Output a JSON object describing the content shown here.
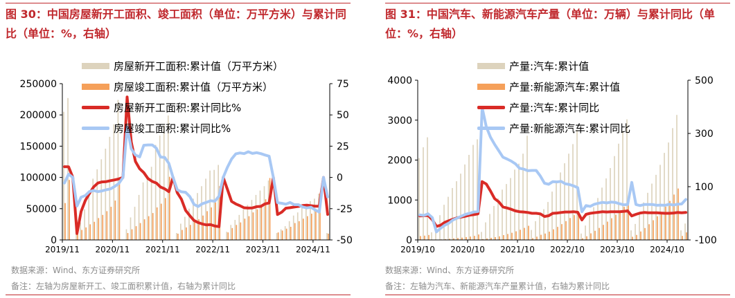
{
  "panels": [
    {
      "title": "图 30：中国房屋新开工面积、竣工面积（单位：万平方米）与累计同比（单位：%，右轴）",
      "source": "数据来源：Wind、东方证券研究所",
      "remark": "备注：左轴为房屋新开工、竣工面积累计值，右轴为累计同比",
      "legend": [
        {
          "label": "房屋新开工面积:累计值（万平方米）",
          "kind": "bar",
          "color": "#ddd3bd"
        },
        {
          "label": "房屋竣工面积:累计值（万平方米）",
          "kind": "bar",
          "color": "#f5a05a"
        },
        {
          "label": "房屋新开工面积:累计同比%",
          "kind": "line",
          "color": "#d92b26"
        },
        {
          "label": "房屋竣工面积:累计同比%",
          "kind": "line",
          "color": "#a8c8f4"
        }
      ]
    },
    {
      "title": "图 31：中国汽车、新能源汽车产量（单位：万辆）与累计同比（单位：%，右轴）",
      "source": "数据来源：Wind、东方证券研究所",
      "remark": "备注：左轴为汽车、新能源汽车产量累计值，右轴为累计同比",
      "legend": [
        {
          "label": "产量:汽车:累计值",
          "kind": "bar",
          "color": "#ddd3bd"
        },
        {
          "label": "产量:新能源汽车:累计值",
          "kind": "bar",
          "color": "#f5a05a"
        },
        {
          "label": "产量:汽车:累计同比",
          "kind": "line",
          "color": "#d92b26"
        },
        {
          "label": "产量:新能源汽车:累计同比",
          "kind": "line",
          "color": "#a8c8f4"
        }
      ]
    }
  ],
  "chart_data": [
    {
      "type": "bar",
      "title": "图 30：中国房屋新开工面积、竣工面积（单位：万平方米）与累计同比（单位：%，右轴）",
      "x": [
        "2019/11",
        "2019/12",
        "2020/01",
        "2020/02",
        "2020/03",
        "2020/04",
        "2020/05",
        "2020/06",
        "2020/07",
        "2020/08",
        "2020/09",
        "2020/10",
        "2020/11",
        "2020/12",
        "2021/01",
        "2021/02",
        "2021/03",
        "2021/04",
        "2021/05",
        "2021/06",
        "2021/07",
        "2021/08",
        "2021/09",
        "2021/10",
        "2021/11",
        "2021/12",
        "2022/01",
        "2022/02",
        "2022/03",
        "2022/04",
        "2022/05",
        "2022/06",
        "2022/07",
        "2022/08",
        "2022/09",
        "2022/10",
        "2022/11",
        "2022/12",
        "2023/01",
        "2023/02",
        "2023/03",
        "2023/04",
        "2023/05",
        "2023/06",
        "2023/07",
        "2023/08",
        "2023/09",
        "2023/10",
        "2023/11",
        "2023/12",
        "2024/01",
        "2024/02",
        "2024/03",
        "2024/04",
        "2024/05",
        "2024/06",
        "2024/07",
        "2024/08",
        "2024/09",
        "2024/10",
        "2024/11",
        "2024/12",
        "2025/01",
        "2025/02"
      ],
      "x_tick_labels": [
        "2019/11",
        "2020/11",
        "2021/11",
        "2022/11",
        "2023/11",
        "2024/11"
      ],
      "y_left_ticks": [
        "0",
        "50000",
        "100000",
        "150000",
        "200000",
        "250000"
      ],
      "y_right_ticks": [
        "-50",
        "-25",
        "0",
        "25",
        "50",
        "75"
      ],
      "ylim_left": [
        0,
        250000
      ],
      "ylim_right": [
        -50,
        75
      ],
      "series": [
        {
          "name": "房屋新开工面积:累计值（万平方米）",
          "axis": "left",
          "kind": "bar",
          "color": "#ddd3bd",
          "values": [
            205000,
            227000,
            0,
            10000,
            28000,
            49000,
            75000,
            98000,
            113000,
            129000,
            146000,
            165000,
            185000,
            224000,
            0,
            17000,
            36000,
            53000,
            72000,
            92000,
            103000,
            117000,
            152000,
            167000,
            183000,
            199000,
            0,
            11000,
            26000,
            37000,
            50000,
            66000,
            75000,
            86000,
            98000,
            111000,
            112000,
            120000,
            0,
            13000,
            24000,
            32000,
            40000,
            49000,
            56000,
            64000,
            72000,
            79000,
            86000,
            95000,
            0,
            11000,
            17000,
            22000,
            30000,
            39000,
            44000,
            51000,
            56000,
            62000,
            66000,
            74000,
            0,
            11000
          ]
        },
        {
          "name": "房屋竣工面积:累计值（万平方米）",
          "axis": "left",
          "kind": "bar",
          "color": "#f5a05a",
          "values": [
            59000,
            96000,
            0,
            9000,
            16000,
            20000,
            25000,
            29000,
            35000,
            40000,
            46000,
            53000,
            63000,
            91000,
            0,
            11000,
            17000,
            22000,
            27000,
            33000,
            38000,
            43000,
            52000,
            58000,
            67000,
            101000,
            0,
            10000,
            16000,
            20000,
            24000,
            29000,
            33000,
            39000,
            46000,
            52000,
            60000,
            86000,
            0,
            12000,
            19000,
            24000,
            28000,
            34000,
            38000,
            44000,
            49000,
            56000,
            65000,
            99000,
            0,
            12000,
            15000,
            18000,
            21000,
            27000,
            30000,
            34000,
            38000,
            42000,
            46000,
            74000,
            0,
            10000
          ]
        },
        {
          "name": "房屋新开工面积:累计同比%",
          "axis": "right",
          "kind": "line",
          "color": "#d92b26",
          "values": [
            8.6,
            8.5,
            0,
            -44.9,
            -27.2,
            -18.4,
            -12.8,
            -7.6,
            -4.5,
            -3.6,
            -3.4,
            -2.6,
            -2.0,
            -1.2,
            0,
            64.3,
            28.2,
            12.8,
            6.9,
            3.8,
            -0.9,
            -3.2,
            -4.5,
            -7.7,
            -9.1,
            -11.4,
            0,
            -12.2,
            -17.5,
            -26.3,
            -30.6,
            -34.4,
            -36.1,
            -37.2,
            -38.0,
            -37.8,
            -38.9,
            -39.4,
            0,
            -9.4,
            -19.2,
            -21.2,
            -22.6,
            -24.3,
            -24.5,
            -24.4,
            -23.4,
            -23.2,
            -21.2,
            -20.4,
            0,
            -29.7,
            -27.8,
            -24.6,
            -24.2,
            -23.7,
            -23.2,
            -22.5,
            -22.2,
            -22.6,
            -23.0,
            -23.0,
            0,
            -29.6
          ]
        },
        {
          "name": "房屋竣工面积:累计同比%",
          "axis": "right",
          "kind": "line",
          "color": "#a8c8f4",
          "values": [
            -4.5,
            2.6,
            0,
            -22.9,
            -15.8,
            -14.5,
            -11.3,
            -10.5,
            -11.4,
            -10.8,
            -9.9,
            -9.2,
            -7.3,
            -4.9,
            0,
            40.4,
            22.9,
            17.9,
            16.4,
            25.7,
            26.0,
            26.0,
            23.4,
            16.3,
            16.0,
            11.2,
            0,
            -9.9,
            -11.5,
            -11.9,
            -15.3,
            -21.5,
            -23.3,
            -21.1,
            -19.9,
            -18.7,
            -19.0,
            -15.0,
            0,
            8.0,
            14.7,
            18.8,
            19.6,
            19.0,
            20.5,
            19.2,
            19.8,
            19.0,
            17.9,
            17.0,
            0,
            -20.2,
            -20.7,
            -21.4,
            -20.1,
            -21.8,
            -21.8,
            -23.6,
            -24.4,
            -23.9,
            -26.0,
            -27.7,
            0,
            -15.6
          ]
        }
      ]
    },
    {
      "type": "bar",
      "title": "图 31：中国汽车、新能源汽车产量（单位：万辆）与累计同比（单位：%，右轴）",
      "x": [
        "2019/10",
        "2019/11",
        "2019/12",
        "2020/01",
        "2020/02",
        "2020/03",
        "2020/04",
        "2020/05",
        "2020/06",
        "2020/07",
        "2020/08",
        "2020/09",
        "2020/10",
        "2020/11",
        "2020/12",
        "2021/01",
        "2021/02",
        "2021/03",
        "2021/04",
        "2021/05",
        "2021/06",
        "2021/07",
        "2021/08",
        "2021/09",
        "2021/10",
        "2021/11",
        "2021/12",
        "2022/01",
        "2022/02",
        "2022/03",
        "2022/04",
        "2022/05",
        "2022/06",
        "2022/07",
        "2022/08",
        "2022/09",
        "2022/10",
        "2022/11",
        "2022/12",
        "2023/01",
        "2023/02",
        "2023/03",
        "2023/04",
        "2023/05",
        "2023/06",
        "2023/07",
        "2023/08",
        "2023/09",
        "2023/10",
        "2023/11",
        "2023/12",
        "2024/01",
        "2024/02",
        "2024/03",
        "2024/04",
        "2024/05",
        "2024/06",
        "2024/07",
        "2024/08",
        "2024/09",
        "2024/10",
        "2024/11",
        "2024/12",
        "2025/01",
        "2025/02"
      ],
      "x_tick_labels": [
        "2019/10",
        "2020/10",
        "2021/10",
        "2022/10",
        "2023/10",
        "2024/10"
      ],
      "y_left_ticks": [
        "0",
        "1000",
        "2000",
        "3000",
        "4000"
      ],
      "y_right_ticks": [
        "-100",
        "100",
        "300",
        "500"
      ],
      "ylim_left": [
        0,
        4000
      ],
      "ylim_right": [
        -100,
        500
      ],
      "series": [
        {
          "name": "产量:汽车:累计值",
          "axis": "left",
          "kind": "bar",
          "color": "#ddd3bd",
          "values": [
            2050,
            2320,
            2570,
            190,
            270,
            620,
            880,
            1080,
            1300,
            1470,
            1660,
            1890,
            2130,
            2380,
            2520,
            200,
            440,
            650,
            850,
            1040,
            1260,
            1400,
            1550,
            1760,
            1910,
            2160,
            2610,
            250,
            470,
            660,
            770,
            950,
            1210,
            1450,
            1690,
            1920,
            2160,
            2400,
            2750,
            160,
            360,
            610,
            820,
            1050,
            1310,
            1540,
            1800,
            2100,
            2410,
            2720,
            3020,
            240,
            400,
            700,
            940,
            1180,
            1410,
            1630,
            1880,
            2180,
            2440,
            2800,
            3130,
            240,
            410
          ]
        },
        {
          "name": "产量:新能源汽车:累计值",
          "axis": "left",
          "kind": "bar",
          "color": "#f5a05a",
          "values": [
            97,
            107,
            124,
            5,
            6,
            13,
            21,
            29,
            39,
            49,
            58,
            71,
            85,
            102,
            136,
            22,
            38,
            53,
            70,
            90,
            121,
            149,
            179,
            216,
            255,
            302,
            354,
            45,
            82,
            129,
            160,
            207,
            266,
            327,
            396,
            471,
            548,
            621,
            706,
            42,
            92,
            165,
            229,
            300,
            378,
            458,
            543,
            631,
            735,
            829,
            958,
            79,
            125,
            211,
            298,
            393,
            493,
            592,
            697,
            832,
            977,
            1136,
            1288,
            101,
            189
          ]
        },
        {
          "name": "产量:汽车:累计同比",
          "axis": "right",
          "kind": "line",
          "color": "#d92b26",
          "values": [
            -10,
            -9,
            -8,
            -24,
            -49,
            -45,
            -34,
            -28,
            -22,
            -17,
            -14,
            -11,
            -7,
            -5,
            -2,
            119,
            110,
            84,
            55,
            43,
            24,
            20,
            15,
            9,
            6,
            5,
            3,
            0,
            0,
            -2,
            -12,
            -9,
            0,
            1,
            3,
            5,
            5,
            6,
            4,
            -25,
            -4,
            0,
            2,
            4,
            6,
            5,
            6,
            6,
            6,
            7,
            9,
            -10,
            -4,
            1,
            3,
            2,
            2,
            2,
            1,
            0,
            0,
            1,
            3,
            2,
            3
          ]
        },
        {
          "name": "产量:新能源汽车:累计同比",
          "axis": "right",
          "kind": "line",
          "color": "#a8c8f4",
          "values": [
            -6,
            -8,
            -2,
            -16,
            -70,
            -56,
            -45,
            -37,
            -25,
            -18,
            -11,
            -4,
            0,
            5,
            7,
            397,
            325,
            286,
            259,
            235,
            211,
            204,
            196,
            186,
            169,
            166,
            160,
            161,
            161,
            140,
            113,
            109,
            119,
            118,
            120,
            111,
            108,
            103,
            96,
            6,
            29,
            26,
            34,
            38,
            41,
            39,
            42,
            41,
            36,
            32,
            33,
            116,
            33,
            29,
            33,
            33,
            33,
            30,
            31,
            30,
            34,
            31,
            34,
            35,
            52
          ]
        }
      ]
    }
  ]
}
